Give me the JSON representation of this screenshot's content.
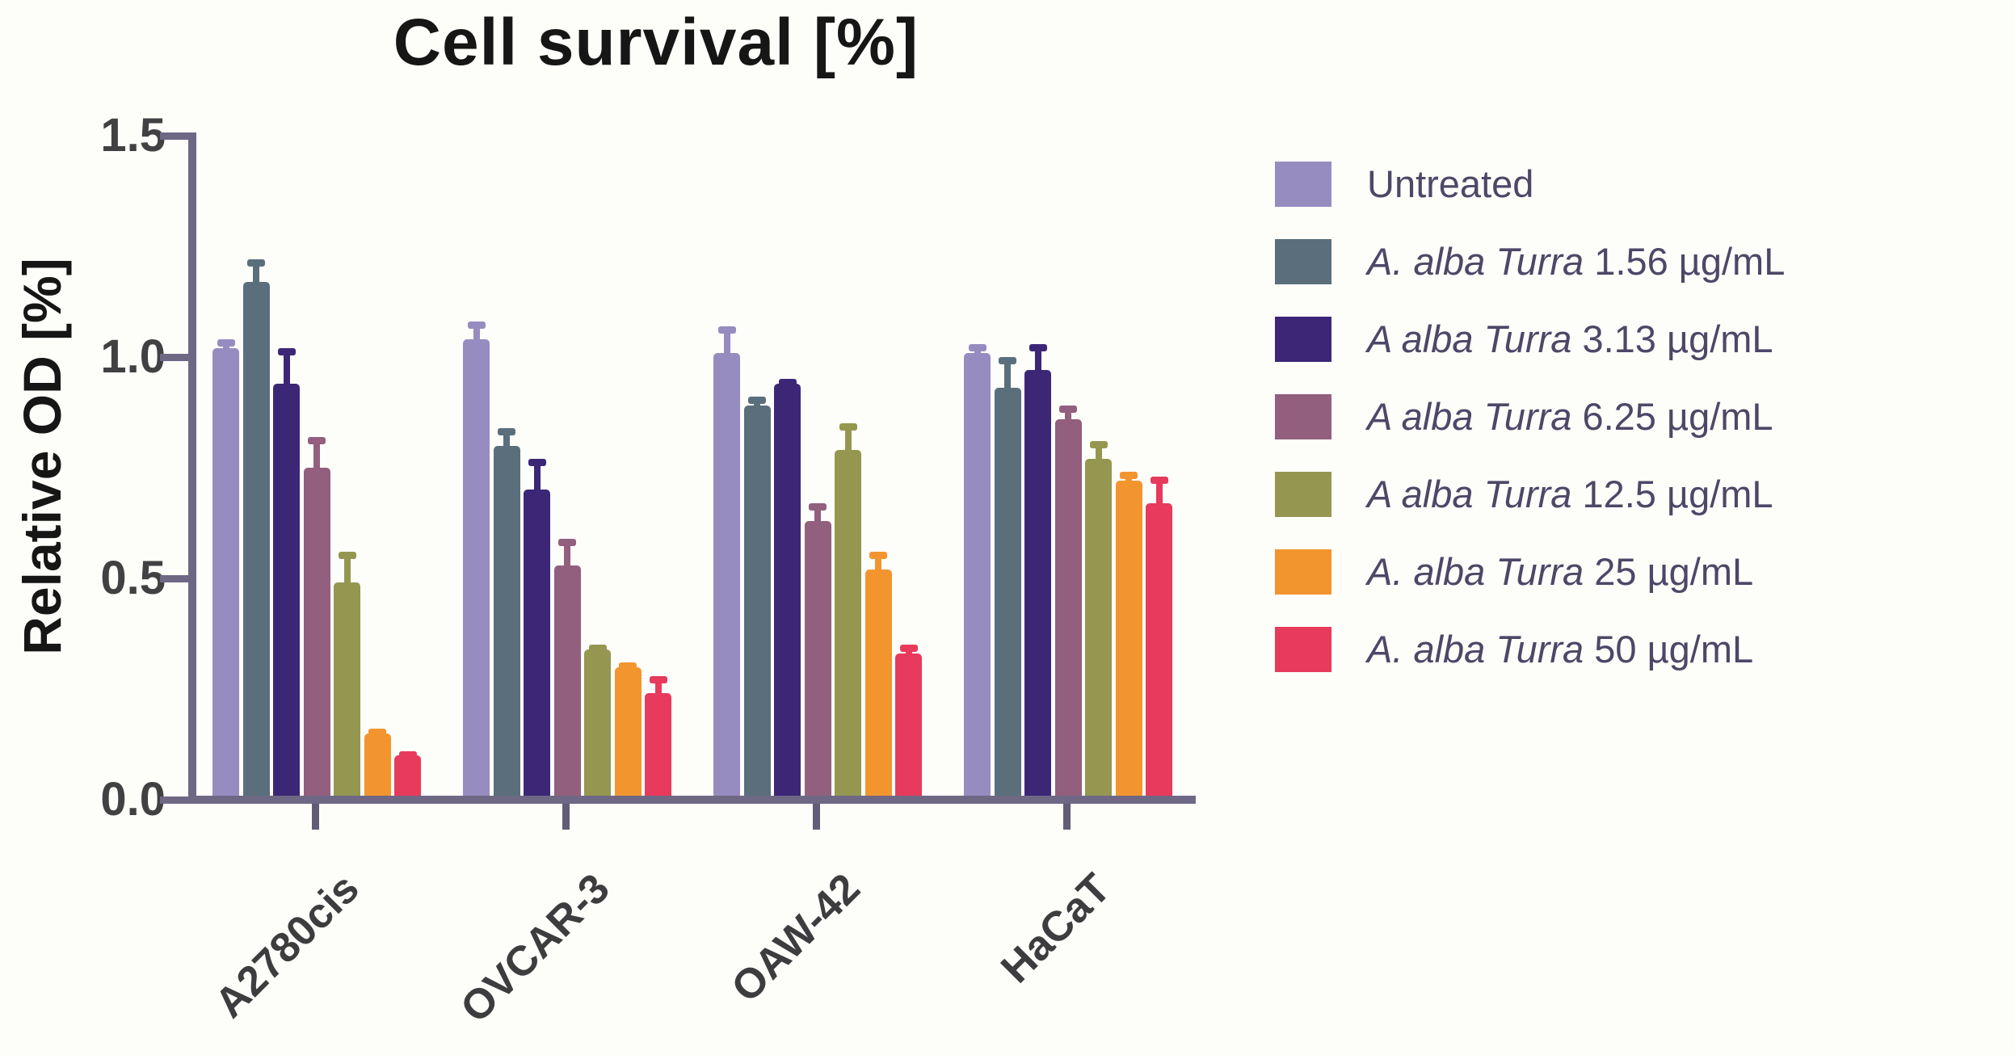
{
  "title": "Cell survival [%]",
  "y_axis": {
    "label": "Relative OD [%]",
    "tick_labels": [
      "1.5",
      "1.0",
      "0.5",
      "0.0"
    ]
  },
  "x_axis": {
    "categories": [
      "A2780cis",
      "OVCAR-3",
      "OAW-42",
      "HaCaT"
    ]
  },
  "legend": {
    "entries": [
      {
        "italic": "",
        "rest": "Untreated",
        "color": "#978cc0"
      },
      {
        "italic": "A. alba Turra",
        "rest": " 1.56 µg/mL",
        "color": "#5a6f7b"
      },
      {
        "italic": "A alba Turra",
        "rest": " 3.13 µg/mL",
        "color": "#3c2777"
      },
      {
        "italic": "A alba Turra",
        "rest": " 6.25 µg/mL",
        "color": "#925f7e"
      },
      {
        "italic": "A alba Turra",
        "rest": " 12.5 µg/mL",
        "color": "#959751"
      },
      {
        "italic": "A. alba Turra",
        "rest": " 25 µg/mL",
        "color": "#f3952f"
      },
      {
        "italic": "A. alba Turra",
        "rest": " 50 µg/mL",
        "color": "#e83a5c"
      }
    ]
  },
  "colors": {
    "axis": "#6f6884",
    "tick_label": "#414042",
    "category_label": "#3d3d3f",
    "legend_text": "#4e4767",
    "title": "#161616",
    "background": "#fdfdfa"
  },
  "chart_data": {
    "type": "bar",
    "title": "Cell survival [%]",
    "xlabel": "",
    "ylabel": "Relative OD [%]",
    "ylim": [
      0,
      1.5
    ],
    "yticks": [
      1.5,
      1.0,
      0.5,
      0.0
    ],
    "grid": false,
    "legend_position": "right",
    "error_bars": "upper",
    "categories": [
      "A2780cis",
      "OVCAR-3",
      "OAW-42",
      "HaCaT"
    ],
    "series": [
      {
        "name": "Untreated",
        "color": "#978cc0",
        "values": [
          1.02,
          1.04,
          1.01,
          1.01
        ],
        "errors": [
          0.02,
          0.04,
          0.06,
          0.02
        ]
      },
      {
        "name": "A. alba Turra 1.56 µg/mL",
        "color": "#5a6f7b",
        "values": [
          1.17,
          0.8,
          0.89,
          0.93
        ],
        "errors": [
          0.05,
          0.04,
          0.02,
          0.07
        ]
      },
      {
        "name": "A alba Turra 3.13 µg/mL",
        "color": "#3c2777",
        "values": [
          0.94,
          0.7,
          0.94,
          0.97
        ],
        "errors": [
          0.08,
          0.07,
          0.01,
          0.06
        ]
      },
      {
        "name": "A alba Turra 6.25 µg/mL",
        "color": "#925f7e",
        "values": [
          0.75,
          0.53,
          0.63,
          0.86
        ],
        "errors": [
          0.07,
          0.06,
          0.04,
          0.03
        ]
      },
      {
        "name": "A alba Turra 12.5 µg/mL",
        "color": "#959751",
        "values": [
          0.49,
          0.34,
          0.79,
          0.77
        ],
        "errors": [
          0.07,
          0.01,
          0.06,
          0.04
        ]
      },
      {
        "name": "A. alba Turra 25 µg/mL",
        "color": "#f3952f",
        "values": [
          0.15,
          0.3,
          0.52,
          0.72
        ],
        "errors": [
          0.01,
          0.01,
          0.04,
          0.02
        ]
      },
      {
        "name": "A. alba Turra 50 µg/mL",
        "color": "#e83a5c",
        "values": [
          0.1,
          0.24,
          0.33,
          0.67
        ],
        "errors": [
          0.01,
          0.04,
          0.02,
          0.06
        ]
      }
    ]
  }
}
